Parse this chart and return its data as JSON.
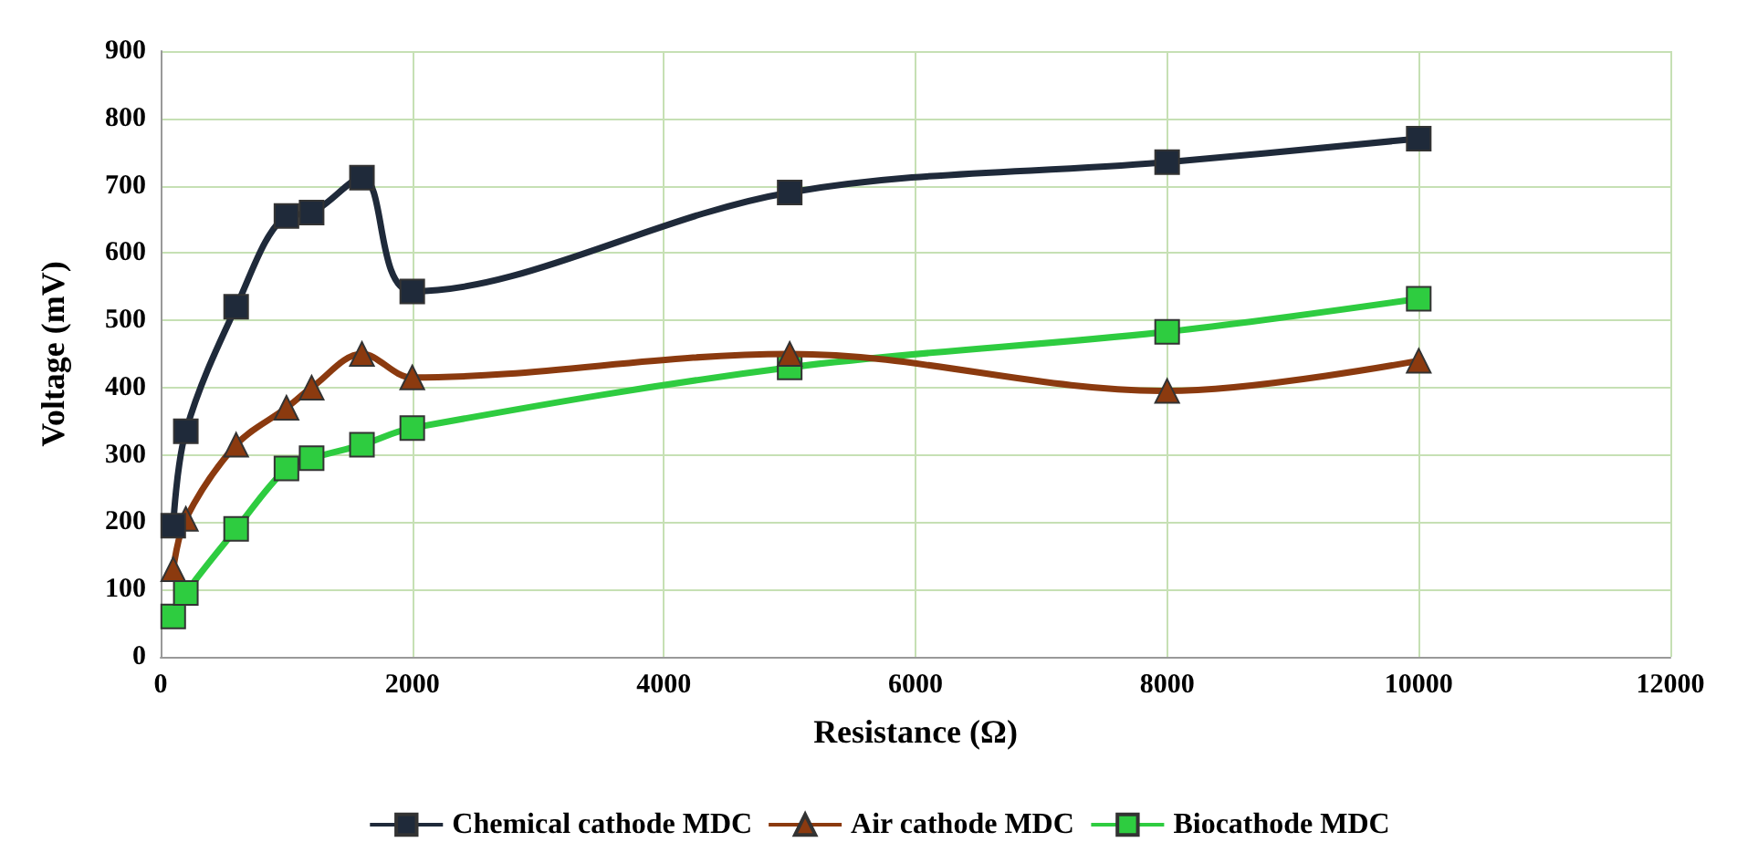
{
  "chart_data": {
    "type": "line",
    "xlabel": "Resistance (Ω)",
    "ylabel": "Voltage (mV)",
    "xlim": [
      0,
      12000
    ],
    "xticks": [
      0,
      2000,
      4000,
      6000,
      8000,
      10000,
      12000
    ],
    "ylim": [
      0,
      900
    ],
    "yticks": [
      0,
      100,
      200,
      300,
      400,
      500,
      600,
      700,
      800,
      900
    ],
    "grid": true,
    "legend": "bottom",
    "series": [
      {
        "name": "Chemical cathode MDC",
        "color": "#1f2a3a",
        "marker": "square",
        "x": [
          100,
          200,
          600,
          1000,
          1200,
          1600,
          2000,
          5000,
          8000,
          10000
        ],
        "values": [
          195,
          335,
          520,
          655,
          660,
          712,
          543,
          690,
          735,
          770
        ]
      },
      {
        "name": "Air cathode MDC",
        "color": "#8b3a0f",
        "marker": "triangle",
        "x": [
          100,
          200,
          600,
          1000,
          1200,
          1600,
          2000,
          5000,
          8000,
          10000
        ],
        "values": [
          130,
          205,
          315,
          370,
          400,
          450,
          415,
          450,
          395,
          440
        ]
      },
      {
        "name": "Biocathode MDC",
        "color": "#2ecc40",
        "marker": "square",
        "x": [
          100,
          200,
          600,
          1000,
          1200,
          1600,
          2000,
          5000,
          8000,
          10000
        ],
        "values": [
          60,
          95,
          190,
          280,
          295,
          315,
          340,
          430,
          483,
          532
        ]
      }
    ]
  }
}
